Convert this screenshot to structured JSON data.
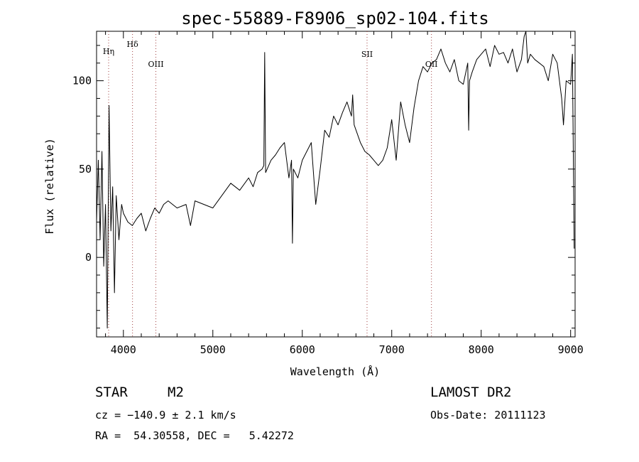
{
  "chart_data": {
    "type": "line",
    "title": "spec-55889-F8906_sp02-104.fits",
    "xlabel": "Wavelength (Å)",
    "ylabel": "Flux (relative)",
    "xlim": [
      3700,
      9050
    ],
    "ylim": [
      -45,
      128
    ],
    "x_ticks": [
      4000,
      5000,
      6000,
      7000,
      8000,
      9000
    ],
    "y_ticks": [
      0,
      50,
      100
    ],
    "grid": false,
    "series": [
      {
        "x": [
          3700,
          3720,
          3740,
          3760,
          3780,
          3800,
          3820,
          3840,
          3860,
          3880,
          3900,
          3920,
          3950,
          3980,
          4000,
          4050,
          4100,
          4150,
          4200,
          4250,
          4300,
          4350,
          4400,
          4450,
          4500,
          4600,
          4700,
          4750,
          4800,
          4900,
          5000,
          5100,
          5200,
          5300,
          5400,
          5450,
          5500,
          5550,
          5570,
          5580,
          5590,
          5650,
          5700,
          5750,
          5800,
          5850,
          5880,
          5890,
          5900,
          5950,
          6000,
          6100,
          6150,
          6200,
          6250,
          6300,
          6350,
          6400,
          6450,
          6500,
          6550,
          6563,
          6580,
          6650,
          6700,
          6750,
          6800,
          6850,
          6900,
          6950,
          7000,
          7050,
          7100,
          7150,
          7200,
          7250,
          7300,
          7350,
          7400,
          7450,
          7500,
          7550,
          7600,
          7650,
          7700,
          7750,
          7800,
          7850,
          7860,
          7870,
          7900,
          7950,
          8000,
          8050,
          8100,
          8150,
          8200,
          8250,
          8300,
          8350,
          8400,
          8450,
          8480,
          8500,
          8520,
          8550,
          8600,
          8650,
          8700,
          8750,
          8800,
          8850,
          8900,
          8920,
          8950,
          9000,
          9020,
          9040
        ],
        "y": [
          20,
          55,
          10,
          60,
          -5,
          30,
          -40,
          86,
          15,
          40,
          -20,
          35,
          10,
          30,
          25,
          20,
          18,
          22,
          25,
          15,
          22,
          28,
          25,
          30,
          32,
          28,
          30,
          18,
          32,
          30,
          28,
          35,
          42,
          38,
          45,
          40,
          48,
          50,
          52,
          116,
          48,
          55,
          58,
          62,
          65,
          45,
          55,
          8,
          50,
          45,
          55,
          65,
          30,
          50,
          72,
          68,
          80,
          75,
          82,
          88,
          80,
          92,
          75,
          65,
          60,
          58,
          55,
          52,
          55,
          62,
          78,
          55,
          88,
          75,
          65,
          85,
          100,
          108,
          105,
          110,
          112,
          118,
          110,
          105,
          112,
          100,
          98,
          110,
          72,
          100,
          105,
          112,
          115,
          118,
          108,
          120,
          115,
          116,
          110,
          118,
          105,
          112,
          125,
          128,
          110,
          115,
          112,
          110,
          108,
          100,
          115,
          110,
          90,
          75,
          100,
          98,
          115,
          5
        ],
        "color": "#000000"
      }
    ],
    "annotations": {
      "lines": [
        {
          "label": "Hη",
          "wavelength": 3835
        },
        {
          "label": "Hδ",
          "wavelength": 4102
        },
        {
          "label": "OIII",
          "wavelength": 4363
        },
        {
          "label": "SII",
          "wavelength": 6724
        },
        {
          "label": "OII",
          "wavelength": 7444
        }
      ]
    }
  },
  "info": {
    "object_type": "STAR",
    "subclass": "M2",
    "survey": "LAMOST DR2",
    "cz": "cz = −140.9 ± 2.1 km/s",
    "obs_date": "Obs-Date: 20111123",
    "coords": "RA =  54.30558, DEC =   5.42272"
  }
}
